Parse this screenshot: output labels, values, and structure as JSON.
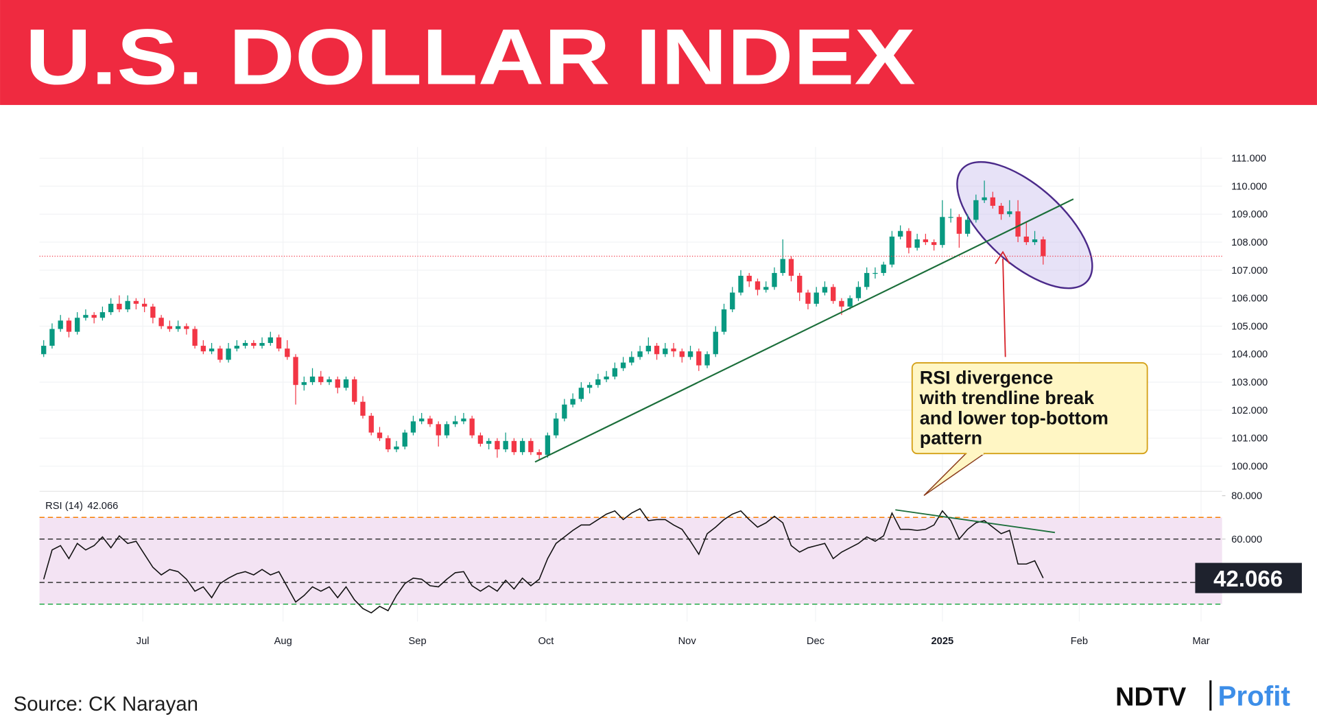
{
  "header": {
    "title": "U.S. DOLLAR INDEX"
  },
  "chart_data": {
    "type": "candlestick",
    "up_color": "#089981",
    "down_color": "#f23645",
    "ohlc": [
      [
        104.0,
        104.5,
        103.9,
        104.3
      ],
      [
        104.3,
        105.1,
        104.2,
        104.9
      ],
      [
        104.9,
        105.4,
        104.8,
        105.2
      ],
      [
        105.2,
        105.3,
        104.6,
        104.8
      ],
      [
        104.8,
        105.5,
        104.7,
        105.3
      ],
      [
        105.3,
        105.6,
        105.2,
        105.4
      ],
      [
        105.4,
        105.5,
        105.1,
        105.3
      ],
      [
        105.3,
        105.7,
        105.2,
        105.5
      ],
      [
        105.5,
        106.0,
        105.4,
        105.8
      ],
      [
        105.8,
        106.1,
        105.5,
        105.6
      ],
      [
        105.6,
        106.1,
        105.5,
        105.9
      ],
      [
        105.9,
        106.0,
        105.6,
        105.8
      ],
      [
        105.8,
        106.0,
        105.5,
        105.7
      ],
      [
        105.7,
        105.8,
        105.1,
        105.3
      ],
      [
        105.3,
        105.4,
        104.9,
        105.0
      ],
      [
        105.0,
        105.2,
        104.8,
        104.9
      ],
      [
        104.9,
        105.2,
        104.8,
        105.0
      ],
      [
        105.0,
        105.1,
        104.7,
        104.9
      ],
      [
        104.9,
        105.0,
        104.2,
        104.3
      ],
      [
        104.3,
        104.5,
        104.0,
        104.1
      ],
      [
        104.1,
        104.4,
        104.0,
        104.2
      ],
      [
        104.2,
        104.3,
        103.7,
        103.8
      ],
      [
        103.8,
        104.4,
        103.7,
        104.2
      ],
      [
        104.2,
        104.5,
        104.1,
        104.3
      ],
      [
        104.3,
        104.5,
        104.2,
        104.4
      ],
      [
        104.4,
        104.5,
        104.2,
        104.3
      ],
      [
        104.3,
        104.6,
        104.2,
        104.4
      ],
      [
        104.4,
        104.8,
        104.3,
        104.6
      ],
      [
        104.6,
        104.7,
        104.1,
        104.2
      ],
      [
        104.2,
        104.5,
        103.8,
        103.9
      ],
      [
        103.9,
        104.0,
        102.2,
        102.9
      ],
      [
        102.9,
        103.2,
        102.7,
        103.0
      ],
      [
        103.0,
        103.5,
        102.9,
        103.2
      ],
      [
        103.2,
        103.4,
        102.9,
        103.0
      ],
      [
        103.0,
        103.2,
        102.9,
        103.1
      ],
      [
        103.1,
        103.2,
        102.6,
        102.8
      ],
      [
        102.8,
        103.2,
        102.7,
        103.1
      ],
      [
        103.1,
        103.2,
        102.2,
        102.3
      ],
      [
        102.3,
        102.5,
        101.7,
        101.8
      ],
      [
        101.8,
        101.9,
        101.1,
        101.2
      ],
      [
        101.2,
        101.4,
        100.9,
        101.0
      ],
      [
        101.0,
        101.1,
        100.5,
        100.6
      ],
      [
        100.6,
        100.9,
        100.5,
        100.7
      ],
      [
        100.7,
        101.3,
        100.6,
        101.2
      ],
      [
        101.2,
        101.8,
        101.1,
        101.6
      ],
      [
        101.6,
        101.9,
        101.5,
        101.7
      ],
      [
        101.7,
        101.8,
        101.4,
        101.5
      ],
      [
        101.5,
        101.6,
        100.7,
        101.1
      ],
      [
        101.1,
        101.6,
        101.0,
        101.5
      ],
      [
        101.5,
        101.8,
        101.4,
        101.6
      ],
      [
        101.6,
        101.9,
        101.5,
        101.7
      ],
      [
        101.7,
        101.8,
        101.0,
        101.1
      ],
      [
        101.1,
        101.2,
        100.7,
        100.8
      ],
      [
        100.8,
        101.0,
        100.6,
        100.9
      ],
      [
        100.9,
        101.0,
        100.3,
        100.6
      ],
      [
        100.6,
        101.2,
        100.5,
        100.9
      ],
      [
        100.9,
        101.0,
        100.4,
        100.5
      ],
      [
        100.5,
        101.0,
        100.4,
        100.9
      ],
      [
        100.9,
        101.0,
        100.4,
        100.5
      ],
      [
        100.5,
        100.6,
        100.2,
        100.4
      ],
      [
        100.4,
        101.2,
        100.3,
        101.1
      ],
      [
        101.1,
        101.9,
        101.0,
        101.7
      ],
      [
        101.7,
        102.4,
        101.6,
        102.2
      ],
      [
        102.2,
        102.6,
        102.1,
        102.4
      ],
      [
        102.4,
        103.0,
        102.3,
        102.8
      ],
      [
        102.8,
        103.0,
        102.6,
        102.9
      ],
      [
        102.9,
        103.3,
        102.8,
        103.1
      ],
      [
        103.1,
        103.4,
        103.0,
        103.2
      ],
      [
        103.2,
        103.7,
        103.1,
        103.5
      ],
      [
        103.5,
        103.9,
        103.4,
        103.7
      ],
      [
        103.7,
        104.1,
        103.6,
        103.9
      ],
      [
        103.9,
        104.3,
        103.8,
        104.1
      ],
      [
        104.1,
        104.6,
        104.0,
        104.3
      ],
      [
        104.3,
        104.4,
        103.8,
        104.0
      ],
      [
        104.0,
        104.4,
        103.9,
        104.2
      ],
      [
        104.2,
        104.4,
        103.9,
        104.1
      ],
      [
        104.1,
        104.2,
        103.7,
        103.9
      ],
      [
        103.9,
        104.3,
        103.8,
        104.1
      ],
      [
        104.1,
        104.2,
        103.4,
        103.6
      ],
      [
        103.6,
        104.1,
        103.5,
        104.0
      ],
      [
        104.0,
        105.0,
        103.9,
        104.8
      ],
      [
        104.8,
        105.8,
        104.7,
        105.6
      ],
      [
        105.6,
        106.4,
        105.5,
        106.2
      ],
      [
        106.2,
        107.0,
        106.1,
        106.8
      ],
      [
        106.8,
        106.9,
        106.4,
        106.6
      ],
      [
        106.6,
        106.7,
        106.1,
        106.3
      ],
      [
        106.3,
        106.6,
        106.2,
        106.4
      ],
      [
        106.4,
        107.1,
        106.3,
        106.9
      ],
      [
        106.9,
        108.1,
        106.8,
        107.4
      ],
      [
        107.4,
        107.5,
        106.6,
        106.8
      ],
      [
        106.8,
        106.9,
        105.9,
        106.2
      ],
      [
        106.2,
        106.3,
        105.6,
        105.8
      ],
      [
        105.8,
        106.4,
        105.7,
        106.2
      ],
      [
        106.2,
        106.6,
        106.1,
        106.4
      ],
      [
        106.4,
        106.5,
        105.8,
        105.9
      ],
      [
        105.9,
        106.0,
        105.4,
        105.7
      ],
      [
        105.7,
        106.1,
        105.6,
        106.0
      ],
      [
        106.0,
        106.6,
        105.9,
        106.4
      ],
      [
        106.4,
        107.1,
        106.3,
        106.9
      ],
      [
        106.9,
        107.1,
        106.7,
        106.9
      ],
      [
        106.9,
        107.3,
        106.8,
        107.2
      ],
      [
        107.2,
        108.4,
        107.1,
        108.2
      ],
      [
        108.2,
        108.6,
        108.1,
        108.4
      ],
      [
        108.4,
        108.5,
        107.6,
        107.8
      ],
      [
        107.8,
        108.3,
        107.7,
        108.1
      ],
      [
        108.1,
        108.3,
        107.9,
        108.0
      ],
      [
        108.0,
        108.1,
        107.7,
        107.9
      ],
      [
        107.9,
        109.5,
        107.8,
        108.9
      ],
      [
        108.9,
        109.2,
        108.7,
        108.9
      ],
      [
        108.9,
        109.0,
        107.8,
        108.3
      ],
      [
        108.3,
        109.0,
        108.2,
        108.8
      ],
      [
        108.8,
        109.7,
        108.7,
        109.5
      ],
      [
        109.5,
        110.2,
        109.4,
        109.6
      ],
      [
        109.6,
        109.8,
        109.2,
        109.3
      ],
      [
        109.3,
        109.4,
        108.8,
        109.0
      ],
      [
        109.0,
        109.5,
        108.9,
        109.1
      ],
      [
        109.1,
        109.5,
        108.0,
        108.2
      ],
      [
        108.2,
        108.7,
        107.9,
        108.0
      ],
      [
        108.0,
        108.4,
        107.9,
        108.1
      ],
      [
        108.1,
        108.2,
        107.2,
        107.5
      ]
    ],
    "xlim": [
      -0.5,
      140.3
    ],
    "xticks": [
      {
        "value": 11.8,
        "label": "Jul"
      },
      {
        "value": 28.5,
        "label": "Aug"
      },
      {
        "value": 44.5,
        "label": "Sep"
      },
      {
        "value": 59.8,
        "label": "Oct"
      },
      {
        "value": 76.6,
        "label": "Nov"
      },
      {
        "value": 91.9,
        "label": "Dec"
      },
      {
        "value": 107,
        "label": "2025"
      },
      {
        "value": 123.3,
        "label": "Feb"
      },
      {
        "value": 137.8,
        "label": "Mar"
      }
    ],
    "ylim": [
      99.1,
      111.4
    ],
    "yticks": [
      {
        "value": 100,
        "label": "100.000"
      },
      {
        "value": 101,
        "label": "101.000"
      },
      {
        "value": 102,
        "label": "102.000"
      },
      {
        "value": 103,
        "label": "103.000"
      },
      {
        "value": 104,
        "label": "104.000"
      },
      {
        "value": 105,
        "label": "105.000"
      },
      {
        "value": 106,
        "label": "106.000"
      },
      {
        "value": 107,
        "label": "107.000"
      },
      {
        "value": 108,
        "label": "108.000"
      },
      {
        "value": 109,
        "label": "109.000"
      },
      {
        "value": 110,
        "label": "110.000"
      },
      {
        "value": 111,
        "label": "111.000"
      }
    ],
    "grid": true,
    "annotation": [
      "RSI divergence",
      "with trendline break",
      "and lower top-bottom",
      "pattern"
    ],
    "rsi": {
      "type": "line",
      "name": "RSI (14)",
      "color": "#111111",
      "values": [
        41.5,
        55,
        57,
        51,
        58,
        55,
        57,
        61,
        56,
        61.5,
        58,
        59,
        53,
        47,
        43.5,
        46,
        45,
        41.5,
        36,
        38,
        33,
        39.5,
        42,
        44,
        45,
        43.5,
        46,
        43.5,
        45,
        38,
        31,
        34,
        38,
        36,
        38,
        33,
        38,
        32,
        28,
        26,
        29,
        27,
        34,
        39.5,
        42,
        41.5,
        38.5,
        38,
        41.5,
        44.5,
        45,
        38.5,
        36,
        38.5,
        36,
        41,
        37,
        42,
        38.5,
        41.5,
        51,
        58,
        61,
        64,
        66.5,
        66.5,
        69,
        71.5,
        73,
        69,
        72,
        74,
        68.5,
        69,
        69,
        66.5,
        64.5,
        59,
        53,
        62.5,
        65.5,
        69,
        71.5,
        73,
        69,
        65.5,
        67.5,
        70.5,
        67.5,
        57,
        54,
        56,
        57,
        58,
        51,
        54,
        56,
        58,
        61,
        59,
        61.5,
        72,
        64.5,
        64.5,
        64,
        64.5,
        66.5,
        73,
        68.5,
        60,
        64.5,
        67.5,
        68.5,
        65.5,
        62.5,
        64,
        48.5,
        48.5,
        50,
        42.066
      ],
      "ylim": [
        22,
        82
      ],
      "yticks": [
        {
          "value": 80,
          "label": "80.000"
        },
        {
          "value": 60,
          "label": "60.000"
        }
      ],
      "levels": [
        {
          "value": 70,
          "color": "#f57c00"
        },
        {
          "value": 60,
          "color": "#333333"
        },
        {
          "value": 40,
          "color": "#333333"
        },
        {
          "value": 30,
          "color": "#22a845"
        }
      ],
      "band_color": "#f3e3f3"
    }
  },
  "footer": {
    "source": "Source: CK Narayan",
    "brand": "NDTV",
    "brand_sub": "Profit"
  }
}
